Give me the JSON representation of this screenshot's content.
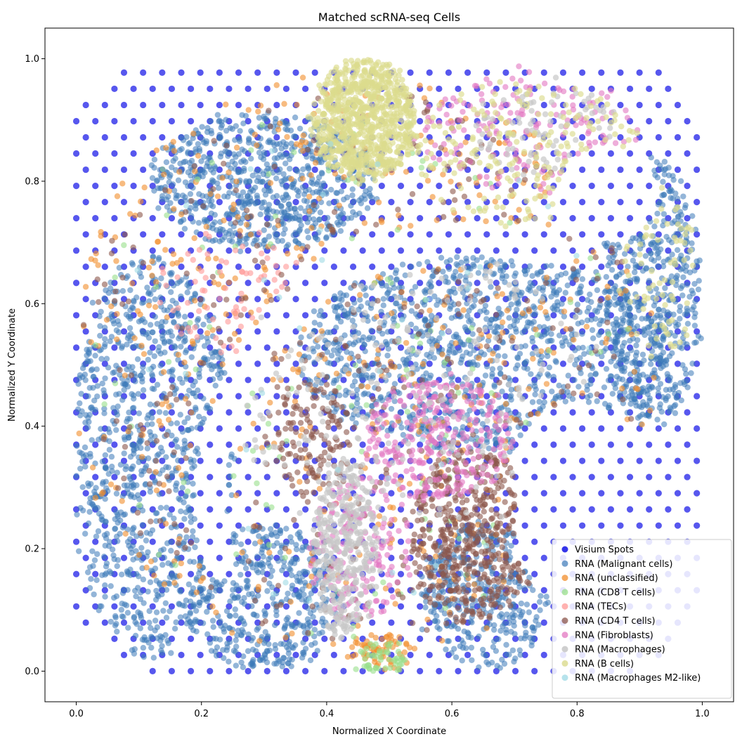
{
  "chart_data": {
    "type": "scatter",
    "title": "Matched scRNA-seq Cells",
    "xlabel": "Normalized X Coordinate",
    "ylabel": "Normalized Y Coordinate",
    "xlim": [
      -0.05,
      1.05
    ],
    "ylim": [
      -0.05,
      1.05
    ],
    "x_ticks": [
      0.0,
      0.2,
      0.4,
      0.6,
      0.8,
      1.0
    ],
    "y_ticks": [
      0.0,
      0.2,
      0.4,
      0.6,
      0.8,
      1.0
    ],
    "x_tick_labels": [
      "0.0",
      "0.2",
      "0.4",
      "0.6",
      "0.8",
      "1.0"
    ],
    "y_tick_labels": [
      "0.0",
      "0.2",
      "0.4",
      "0.6",
      "0.8",
      "1.0"
    ],
    "grid": false,
    "legend_position": "bottom-right",
    "series": [
      {
        "name": "Visium Spots",
        "color": "#1f1fe8",
        "alpha": 0.75
      },
      {
        "name": "RNA (Malignant cells)",
        "color": "#3a78b8",
        "alpha": 0.55
      },
      {
        "name": "RNA (unclassified)",
        "color": "#f28e2b",
        "alpha": 0.6
      },
      {
        "name": "RNA (CD8 T cells)",
        "color": "#98df8a",
        "alpha": 0.6
      },
      {
        "name": "RNA (TECs)",
        "color": "#ff9896",
        "alpha": 0.6
      },
      {
        "name": "RNA (CD4 T cells)",
        "color": "#8c564b",
        "alpha": 0.6
      },
      {
        "name": "RNA (Fibroblasts)",
        "color": "#e377c2",
        "alpha": 0.6
      },
      {
        "name": "RNA (Macrophages)",
        "color": "#c7c7c7",
        "alpha": 0.7
      },
      {
        "name": "RNA (B cells)",
        "color": "#dbdb8d",
        "alpha": 0.65
      },
      {
        "name": "RNA (Macrophages M2-like)",
        "color": "#9edae5",
        "alpha": 0.6
      }
    ],
    "regions": [
      {
        "series": "RNA (Malignant cells)",
        "shape": "ellipse",
        "center": [
          0.12,
          0.35
        ],
        "radius": [
          0.13,
          0.33
        ],
        "density": 900
      },
      {
        "series": "RNA (Malignant cells)",
        "shape": "ellipse",
        "center": [
          0.3,
          0.8
        ],
        "radius": [
          0.18,
          0.11
        ],
        "density": 700
      },
      {
        "series": "RNA (Malignant cells)",
        "shape": "ellipse",
        "center": [
          0.65,
          0.52
        ],
        "radius": [
          0.3,
          0.16
        ],
        "density": 1100
      },
      {
        "series": "RNA (Malignant cells)",
        "shape": "ellipse",
        "center": [
          0.92,
          0.62
        ],
        "radius": [
          0.08,
          0.22
        ],
        "density": 450
      },
      {
        "series": "RNA (Malignant cells)",
        "shape": "ellipse",
        "center": [
          0.3,
          0.12
        ],
        "radius": [
          0.12,
          0.12
        ],
        "density": 400
      },
      {
        "series": "RNA (Malignant cells)",
        "shape": "ellipse",
        "center": [
          0.65,
          0.12
        ],
        "radius": [
          0.1,
          0.12
        ],
        "density": 350
      },
      {
        "series": "RNA (unclassified)",
        "shape": "ellipse",
        "center": [
          0.45,
          0.5
        ],
        "radius": [
          0.48,
          0.48
        ],
        "density": 500
      },
      {
        "series": "RNA (unclassified)",
        "shape": "ellipse",
        "center": [
          0.49,
          0.03
        ],
        "radius": [
          0.05,
          0.03
        ],
        "density": 60
      },
      {
        "series": "RNA (CD8 T cells)",
        "shape": "ellipse",
        "center": [
          0.45,
          0.5
        ],
        "radius": [
          0.45,
          0.45
        ],
        "density": 120
      },
      {
        "series": "RNA (CD8 T cells)",
        "shape": "ellipse",
        "center": [
          0.49,
          0.02
        ],
        "radius": [
          0.04,
          0.025
        ],
        "density": 50
      },
      {
        "series": "RNA (TECs)",
        "shape": "ellipse",
        "center": [
          0.25,
          0.62
        ],
        "radius": [
          0.12,
          0.1
        ],
        "density": 70
      },
      {
        "series": "RNA (CD4 T cells)",
        "shape": "ellipse",
        "center": [
          0.45,
          0.5
        ],
        "radius": [
          0.45,
          0.45
        ],
        "density": 350
      },
      {
        "series": "RNA (CD4 T cells)",
        "shape": "ellipse",
        "center": [
          0.63,
          0.22
        ],
        "radius": [
          0.1,
          0.14
        ],
        "density": 450
      },
      {
        "series": "RNA (CD4 T cells)",
        "shape": "ellipse",
        "center": [
          0.38,
          0.38
        ],
        "radius": [
          0.06,
          0.1
        ],
        "density": 120
      },
      {
        "series": "RNA (Fibroblasts)",
        "shape": "ellipse",
        "center": [
          0.58,
          0.38
        ],
        "radius": [
          0.12,
          0.1
        ],
        "density": 300
      },
      {
        "series": "RNA (Fibroblasts)",
        "shape": "ellipse",
        "center": [
          0.45,
          0.2
        ],
        "radius": [
          0.08,
          0.12
        ],
        "density": 160
      },
      {
        "series": "RNA (Fibroblasts)",
        "shape": "ellipse",
        "center": [
          0.72,
          0.88
        ],
        "radius": [
          0.18,
          0.1
        ],
        "density": 160
      },
      {
        "series": "RNA (Macrophages)",
        "shape": "ellipse",
        "center": [
          0.43,
          0.2
        ],
        "radius": [
          0.05,
          0.15
        ],
        "density": 350
      },
      {
        "series": "RNA (Macrophages)",
        "shape": "ellipse",
        "center": [
          0.55,
          0.45
        ],
        "radius": [
          0.3,
          0.25
        ],
        "density": 200
      },
      {
        "series": "RNA (Macrophages)",
        "shape": "ellipse",
        "center": [
          0.75,
          0.88
        ],
        "radius": [
          0.12,
          0.08
        ],
        "density": 80
      },
      {
        "series": "RNA (B cells)",
        "shape": "ellipse",
        "center": [
          0.46,
          0.9
        ],
        "radius": [
          0.08,
          0.1
        ],
        "density": 900
      },
      {
        "series": "RNA (B cells)",
        "shape": "ellipse",
        "center": [
          0.72,
          0.85
        ],
        "radius": [
          0.18,
          0.12
        ],
        "density": 180
      },
      {
        "series": "RNA (B cells)",
        "shape": "ellipse",
        "center": [
          0.93,
          0.65
        ],
        "radius": [
          0.06,
          0.15
        ],
        "density": 70
      },
      {
        "series": "RNA (Macrophages M2-like)",
        "shape": "ellipse",
        "center": [
          0.45,
          0.5
        ],
        "radius": [
          0.4,
          0.4
        ],
        "density": 40
      }
    ]
  }
}
